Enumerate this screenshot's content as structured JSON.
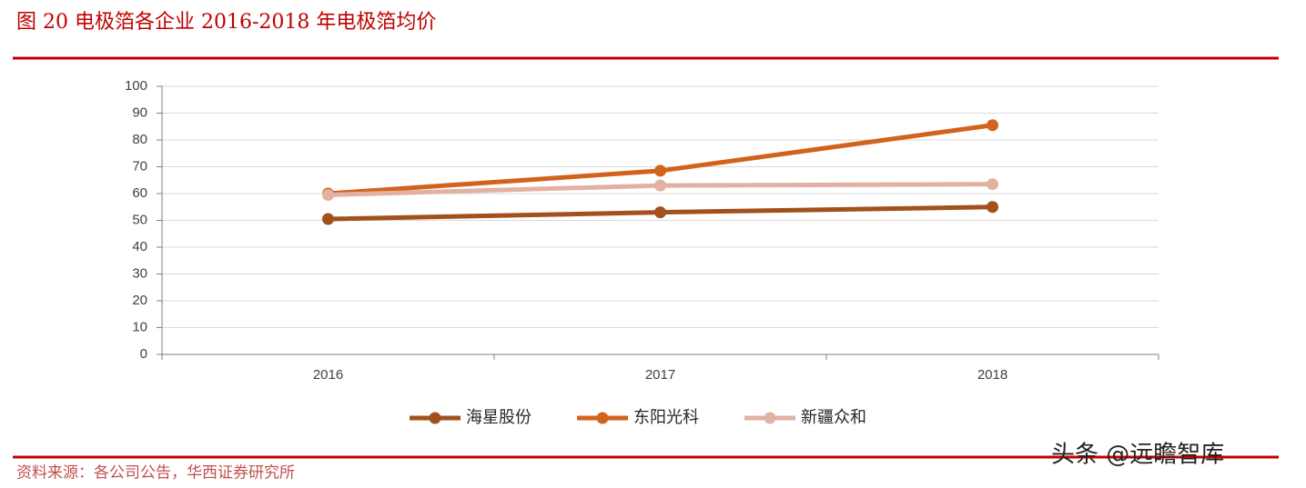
{
  "chart_data": {
    "type": "line",
    "title": "图 20 电极箔各企业 2016-2018 年电极箔均价",
    "source": "资料来源：各公司公告，华西证券研究所",
    "watermark": "头条 @远瞻智库",
    "categories": [
      "2016",
      "2017",
      "2018"
    ],
    "series": [
      {
        "name": "海星股份",
        "color": "#a0511c",
        "values": [
          50.5,
          53,
          55
        ]
      },
      {
        "name": "东阳光科",
        "color": "#d2621c",
        "values": [
          60,
          68.5,
          85.5
        ]
      },
      {
        "name": "新疆众和",
        "color": "#e2b1a3",
        "values": [
          59.5,
          63,
          63.5
        ]
      }
    ],
    "ylim": [
      0,
      100
    ],
    "yticks": [
      0,
      10,
      20,
      30,
      40,
      50,
      60,
      70,
      80,
      90,
      100
    ],
    "grid": true
  }
}
